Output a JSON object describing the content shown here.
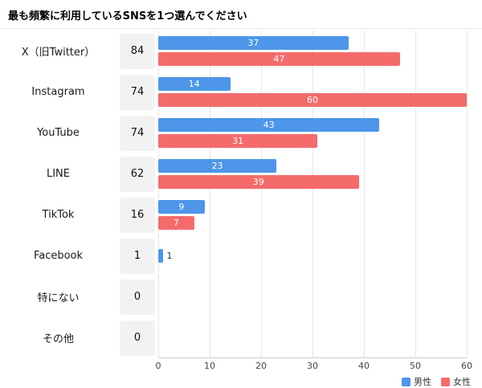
{
  "title": "最も頻繁に利用しているSNSを1つ選んでください",
  "colors": {
    "male": "#4D96E9",
    "female": "#F56B6B",
    "total_box_bg": "#F2F2F2",
    "gridline": "#E6E6E6"
  },
  "legend": [
    {
      "label": "男性",
      "color_key": "male"
    },
    {
      "label": "女性",
      "color_key": "female"
    }
  ],
  "chart_data": {
    "type": "bar",
    "orientation": "horizontal",
    "title": "最も頻繁に利用しているSNSを1つ選んでください",
    "categories": [
      "X（旧Twitter）",
      "Instagram",
      "YouTube",
      "LINE",
      "TikTok",
      "Facebook",
      "特にない",
      "その他"
    ],
    "totals": [
      84,
      74,
      74,
      62,
      16,
      1,
      0,
      0
    ],
    "series": [
      {
        "name": "男性",
        "values": [
          37,
          14,
          43,
          23,
          9,
          1,
          0,
          0
        ]
      },
      {
        "name": "女性",
        "values": [
          47,
          60,
          31,
          39,
          7,
          0,
          0,
          0
        ]
      }
    ],
    "x_ticks": [
      0,
      10,
      20,
      30,
      40,
      50,
      60
    ],
    "xlim": [
      0,
      60
    ],
    "grid": true,
    "legend_position": "bottom-right"
  }
}
